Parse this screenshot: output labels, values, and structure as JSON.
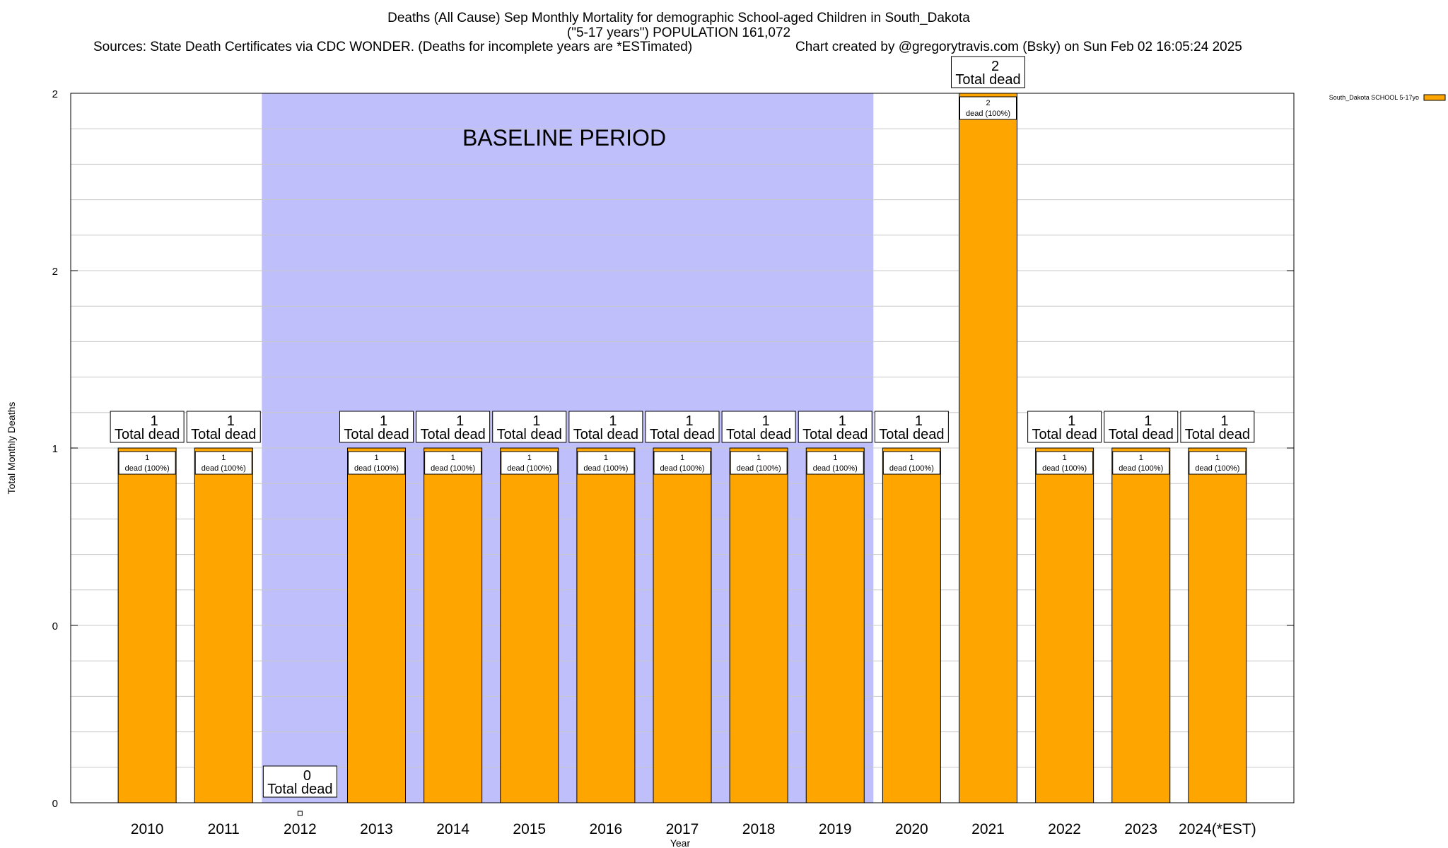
{
  "chart_data": {
    "type": "bar",
    "title_lines": [
      "Deaths (All Cause) Sep Monthly Mortality for demographic School-aged Children in South_Dakota",
      "(\"5-17 years\") POPULATION 161,072"
    ],
    "sources_text": "Sources: State Death Certificates via CDC WONDER. (Deaths for incomplete years are *ESTimated)",
    "credit_text": "Chart created by @gregorytravis.com (Bsky) on Sun Feb 02 16:05:24 2025",
    "xlabel": "Year",
    "ylabel": "Total Monthly Deaths",
    "ylim": [
      0,
      2
    ],
    "y_tick_labels": [
      "0",
      "0",
      "1",
      "2",
      "2"
    ],
    "grid": true,
    "legend_position": "top-right",
    "baseline_label": "BASELINE PERIOD",
    "baseline_range": [
      "2012",
      "2019"
    ],
    "categories": [
      "2010",
      "2011",
      "2012",
      "2013",
      "2014",
      "2015",
      "2016",
      "2017",
      "2018",
      "2019",
      "2020",
      "2021",
      "2022",
      "2023",
      "2024(*EST)"
    ],
    "series": [
      {
        "name": "South_Dakota SCHOOL 5-17yo",
        "color": "#ffa500",
        "values": [
          1,
          1,
          0,
          1,
          1,
          1,
          1,
          1,
          1,
          1,
          1,
          2,
          1,
          1,
          1
        ]
      }
    ],
    "total_labels": [
      "1",
      "1",
      "0",
      "1",
      "1",
      "1",
      "1",
      "1",
      "1",
      "1",
      "1",
      "2",
      "1",
      "1",
      "1"
    ],
    "total_suffix": "Total dead",
    "inner_suffix": "dead (100%)",
    "colors": {
      "bar": "#ffa500",
      "baseline_band": "#bfbffc"
    }
  }
}
